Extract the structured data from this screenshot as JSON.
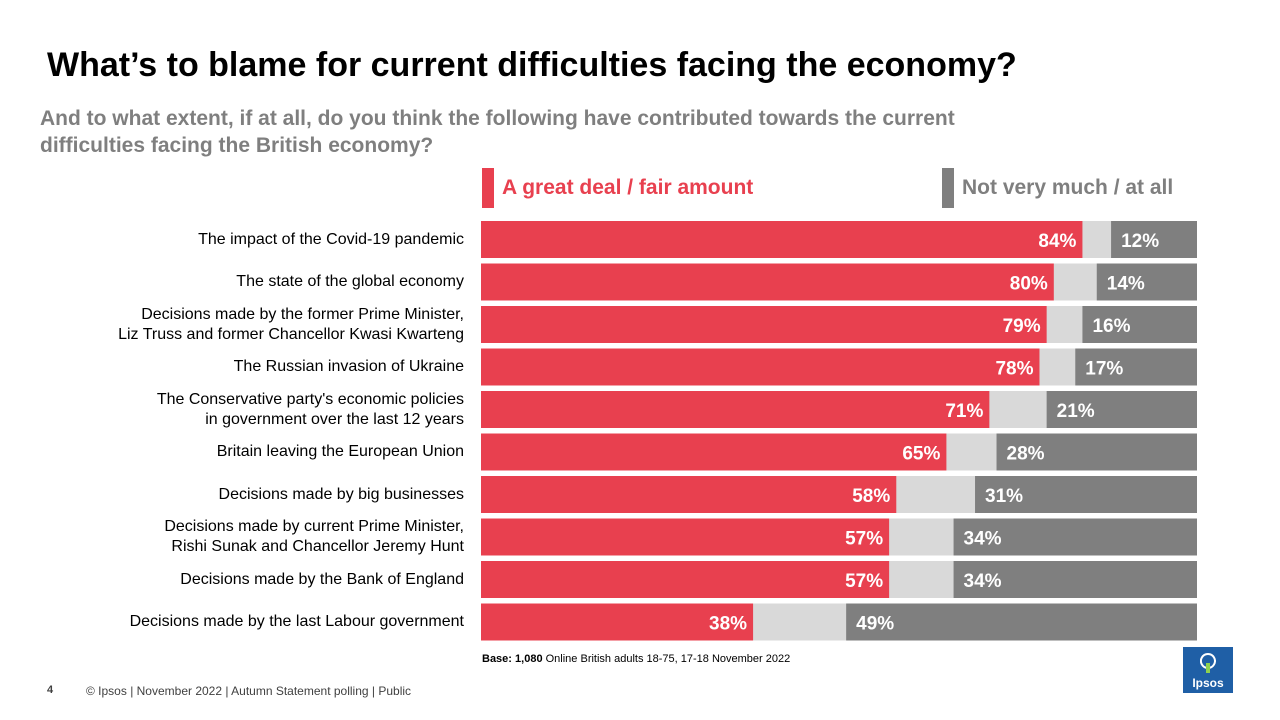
{
  "title": "What’s to blame for current difficulties facing the economy?",
  "subtitle": "And to what extent, if at all, do you think the following have contributed towards the current difficulties facing the British economy?",
  "legend": {
    "positive": "A great deal / fair amount",
    "negative": "Not very much / at all"
  },
  "colors": {
    "positive": "#e8404f",
    "neutral": "#d9d9d9",
    "negative": "#7f7f7f"
  },
  "chart_data": {
    "type": "bar",
    "orientation": "horizontal-stacked",
    "categories": [
      [
        "The impact of the Covid-19 pandemic"
      ],
      [
        "The state of the global economy"
      ],
      [
        "Decisions made by the former Prime Minister,",
        "Liz Truss and former Chancellor Kwasi Kwarteng"
      ],
      [
        "The Russian invasion of Ukraine"
      ],
      [
        "The Conservative party's economic policies",
        "in government over the last 12 years"
      ],
      [
        "Britain leaving the European Union"
      ],
      [
        "Decisions made by big businesses"
      ],
      [
        "Decisions made by current Prime Minister,",
        "Rishi Sunak and Chancellor Jeremy Hunt"
      ],
      [
        "Decisions made by the Bank of England"
      ],
      [
        "Decisions made by the last Labour government"
      ]
    ],
    "series": [
      {
        "name": "A great deal / fair amount",
        "values": [
          84,
          80,
          79,
          78,
          71,
          65,
          58,
          57,
          57,
          38
        ]
      },
      {
        "name": "Not very much / at all",
        "values": [
          12,
          14,
          16,
          17,
          21,
          28,
          31,
          34,
          34,
          49
        ]
      }
    ],
    "unit": "%",
    "xlim": [
      0,
      100
    ]
  },
  "base": {
    "label": "Base:",
    "n": "1,080",
    "text": "Online British adults 18-75, 17-18 November 2022"
  },
  "footer": "© Ipsos | November  2022 | Autumn Statement polling | Public",
  "page_number": "4",
  "logo_text": "Ipsos"
}
